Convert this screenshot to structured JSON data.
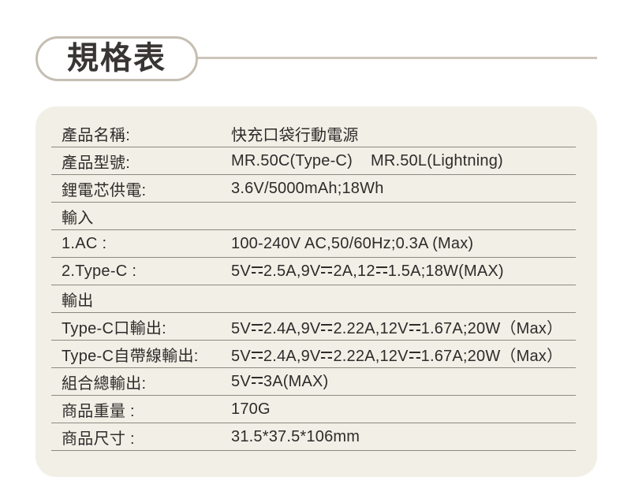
{
  "header": {
    "title": "規格表"
  },
  "colors": {
    "page_bg": "#ffffff",
    "card_bg": "#f2efe7",
    "accent_border": "#c5beb2",
    "separator": "#8b897f",
    "text": "#2d2c2a"
  },
  "spec_table": {
    "rows": [
      {
        "label": "產品名稱:",
        "value": "快充口袋行動電源"
      },
      {
        "label": "產品型號:",
        "value": "MR.50C(Type-C)    MR.50L(Lightning)"
      },
      {
        "label": "鋰電芯供電:",
        "value": "3.6V/5000mAh;18Wh"
      },
      {
        "label": "輸入",
        "value": ""
      },
      {
        "label": "1.AC :",
        "value": "100-240V AC,50/60Hz;0.3A (Max)"
      },
      {
        "label": "2.Type-C :",
        "value": "5V⎓2.5A,9V⎓2A,12⎓1.5A;18W(MAX)"
      },
      {
        "label": "輸出",
        "value": ""
      },
      {
        "label": "Type-C口輸出:",
        "value": "5V⎓2.4A,9V⎓2.22A,12V⎓1.67A;20W（Max）"
      },
      {
        "label": "Type-C自帶線輸出:",
        "value": "5V⎓2.4A,9V⎓2.22A,12V⎓1.67A;20W（Max）"
      },
      {
        "label": "組合總輸出:",
        "value": "5V⎓3A(MAX)"
      },
      {
        "label": "商品重量 :",
        "value": "170G"
      },
      {
        "label": "商品尺寸 :",
        "value": "31.5*37.5*106mm"
      }
    ]
  }
}
